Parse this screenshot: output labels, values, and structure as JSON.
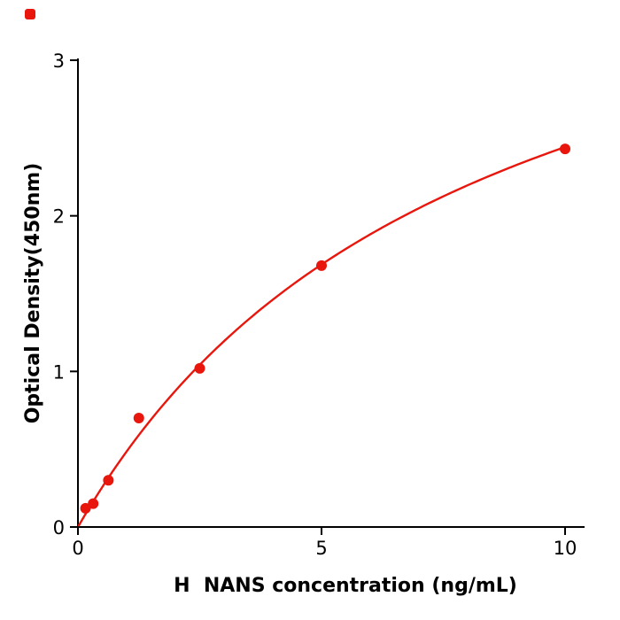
{
  "page": {
    "background_color": "#ffffff"
  },
  "logo": {
    "dot_color": "#e8160c"
  },
  "chart_data": {
    "type": "scatter",
    "title": "",
    "xlabel": "H  NANS concentration (ng/mL)",
    "ylabel": "Optical Density(450nm)",
    "xlim": [
      0,
      10.4
    ],
    "ylim": [
      0,
      3
    ],
    "x_ticks": [
      0,
      5,
      10
    ],
    "y_ticks": [
      0,
      1,
      2,
      3
    ],
    "grid": false,
    "legend": null,
    "series_color": "#e8160c",
    "axis_color": "#000000",
    "points": {
      "x": [
        0.156,
        0.3125,
        0.625,
        1.25,
        2.5,
        5,
        10
      ],
      "y": [
        0.12,
        0.15,
        0.3,
        0.7,
        1.02,
        1.68,
        2.43
      ]
    },
    "fit_curve": {
      "model": "saturation y = a*x/(b+x)",
      "a": 4.42,
      "b": 8.1,
      "x_start": 0.02,
      "x_end": 10
    }
  }
}
